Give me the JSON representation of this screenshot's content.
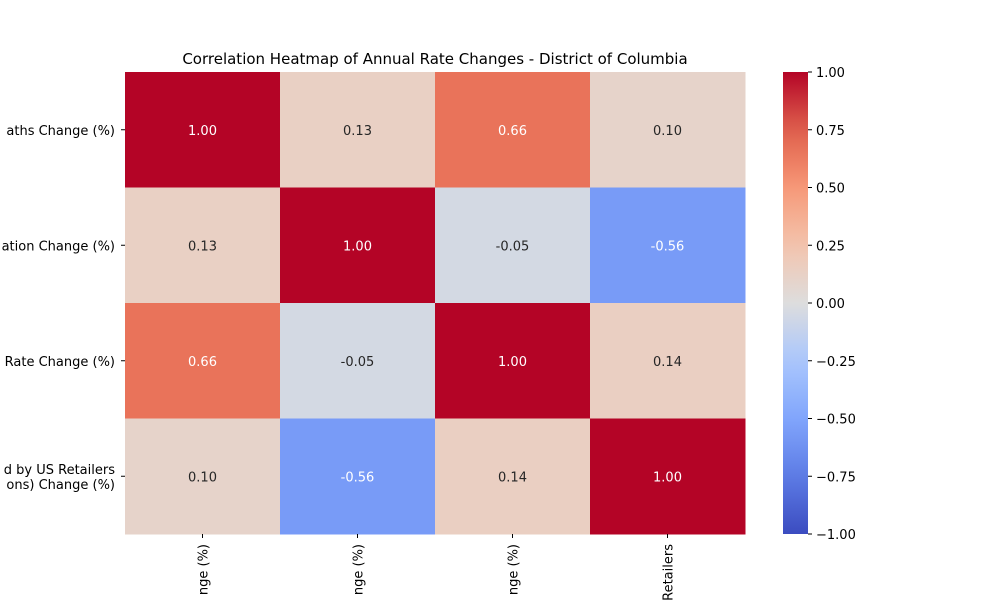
{
  "chart_data": {
    "type": "heatmap",
    "title": "Correlation Heatmap of Annual Rate Changes - District of Columbia",
    "row_labels": [
      [
        "aths Change (%)"
      ],
      [
        "ation Change (%)"
      ],
      [
        "Rate Change (%)"
      ],
      [
        "d by US Retailers",
        "ons) Change (%)"
      ]
    ],
    "col_labels": [
      "nge (%)",
      "nge (%)",
      "nge (%)",
      "Retailers"
    ],
    "values": [
      [
        1.0,
        0.13,
        0.66,
        0.1
      ],
      [
        0.13,
        1.0,
        -0.05,
        -0.56
      ],
      [
        0.66,
        -0.05,
        1.0,
        0.14
      ],
      [
        0.1,
        -0.56,
        0.14,
        1.0
      ]
    ],
    "cell_labels": [
      [
        "1.00",
        "0.13",
        "0.66",
        "0.10"
      ],
      [
        "0.13",
        "1.00",
        "-0.05",
        "-0.56"
      ],
      [
        "0.66",
        "-0.05",
        "1.00",
        "0.14"
      ],
      [
        "0.10",
        "-0.56",
        "0.14",
        "1.00"
      ]
    ],
    "colormap": "coolwarm",
    "vmin": -1.0,
    "vmax": 1.0,
    "colorbar_ticks": [
      "1.00",
      "0.75",
      "0.50",
      "0.25",
      "0.00",
      "−0.25",
      "−0.50",
      "−0.75",
      "−1.00"
    ],
    "colorbar_values": [
      1.0,
      0.75,
      0.5,
      0.25,
      0.0,
      -0.25,
      -0.5,
      -0.75,
      -1.0
    ]
  }
}
